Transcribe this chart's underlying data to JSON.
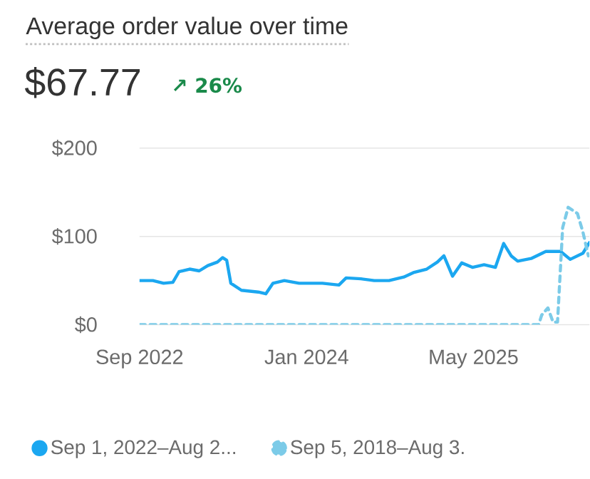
{
  "chart_data": {
    "type": "line",
    "title": "Average order value over time",
    "subtitle": "$67.77",
    "annotations": [
      "↗ 26%"
    ],
    "xlim": [
      "2022-09-01",
      "2026-04-04"
    ],
    "ylim": [
      0,
      200
    ],
    "xticks": [
      {
        "value": "2022-09-01",
        "label": "Sep 2022"
      },
      {
        "value": "2024-01-01",
        "label": "Jan 2024"
      },
      {
        "value": "2025-05-01",
        "label": "May 2025"
      }
    ],
    "yticks": [
      {
        "value": 0,
        "label": "$0"
      },
      {
        "value": 100,
        "label": "$100"
      },
      {
        "value": 200,
        "label": "$200"
      }
    ],
    "grid": "y",
    "legend": "bottom left",
    "marker": "none",
    "series": [
      {
        "name": "Sep 1, 2022–Aug 2...",
        "color": "#1ba7f0",
        "line_style": "solid",
        "x": [
          "2022-09-01",
          "2022-10-10",
          "2022-11-10",
          "2022-12-07",
          "2022-12-25",
          "2023-01-25",
          "2023-02-22",
          "2023-03-19",
          "2023-04-16",
          "2023-05-01",
          "2023-05-13",
          "2023-05-25",
          "2023-06-25",
          "2023-08-13",
          "2023-09-04",
          "2023-09-25",
          "2023-10-28",
          "2023-12-10",
          "2024-02-16",
          "2024-04-04",
          "2024-04-25",
          "2024-06-07",
          "2024-07-16",
          "2024-08-28",
          "2024-10-10",
          "2024-11-07",
          "2024-12-16",
          "2025-01-16",
          "2025-02-04",
          "2025-03-01",
          "2025-03-28",
          "2025-04-28",
          "2025-06-01",
          "2025-07-04",
          "2025-07-28",
          "2025-08-19",
          "2025-09-07",
          "2025-10-16",
          "2025-11-28",
          "2026-01-10",
          "2026-02-07",
          "2026-03-16",
          "2026-04-04"
        ],
        "values": [
          50,
          50,
          47,
          48,
          60,
          63,
          61,
          67,
          71,
          76,
          73,
          47,
          39,
          37,
          35,
          47,
          50,
          47,
          47,
          45,
          53,
          52,
          50,
          50,
          54,
          59,
          63,
          71,
          78,
          55,
          70,
          65,
          68,
          65,
          92,
          78,
          72,
          75,
          83,
          83,
          74,
          81,
          93
        ]
      },
      {
        "name": "Sep 5, 2018–Aug 3.",
        "color": "#7ccbe8",
        "line_style": "dashed",
        "x": [
          "2022-09-01",
          "2025-11-07",
          "2025-11-16",
          "2025-12-04",
          "2025-12-19",
          "2026-01-01",
          "2026-01-16",
          "2026-02-01",
          "2026-02-28",
          "2026-03-16",
          "2026-04-01"
        ],
        "values": [
          0,
          0,
          11,
          19,
          3,
          3,
          110,
          133,
          126,
          105,
          78
        ]
      }
    ]
  }
}
